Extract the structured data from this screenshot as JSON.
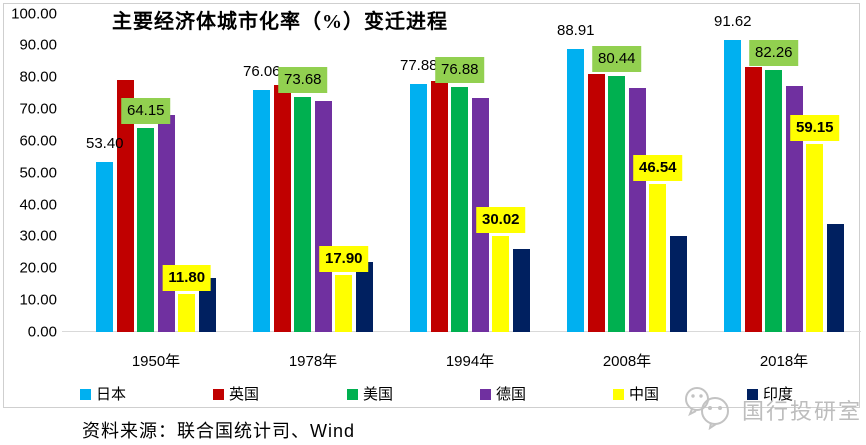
{
  "chart": {
    "source_note": "资料来源：联合国统计司、Wind",
    "watermark_text": "国行投研室",
    "watermark_icon": "wechat-logo-icon",
    "frame_color": "#cfcfcf",
    "axis_color": "#d9d9d9"
  },
  "chart_data": {
    "type": "bar",
    "title": "主要经济体城市化率（%）变迁进程",
    "categories": [
      "1950年",
      "1978年",
      "1994年",
      "2008年",
      "2018年"
    ],
    "series": [
      {
        "name": "日本",
        "color": "#00B0F0",
        "values": [
          53.4,
          76.06,
          77.88,
          88.91,
          91.62
        ],
        "data_labels": {
          "texts": [
            "53.40",
            "76.06",
            "77.88",
            "88.91",
            "91.62"
          ],
          "bg": null,
          "bold": false
        }
      },
      {
        "name": "英国",
        "color": "#C00000",
        "values": [
          79.0,
          77.6,
          78.9,
          80.9,
          83.3
        ]
      },
      {
        "name": "美国",
        "color": "#00B050",
        "values": [
          64.15,
          73.68,
          76.88,
          80.44,
          82.26
        ],
        "data_labels": {
          "texts": [
            "64.15",
            "73.68",
            "76.88",
            "80.44",
            "82.26"
          ],
          "bg": "#92D050",
          "bold": false
        }
      },
      {
        "name": "德国",
        "color": "#7030A0",
        "values": [
          68.1,
          72.6,
          73.5,
          76.6,
          77.3
        ]
      },
      {
        "name": "中国",
        "color": "#FFFF00",
        "values": [
          11.8,
          17.9,
          30.02,
          46.54,
          59.15
        ],
        "data_labels": {
          "texts": [
            "11.80",
            "17.90",
            "30.02",
            "46.54",
            "59.15"
          ],
          "bg": "#FFFF00",
          "bold": true
        }
      },
      {
        "name": "印度",
        "color": "#002060",
        "values": [
          17.0,
          22.0,
          26.2,
          30.1,
          33.9
        ]
      }
    ],
    "ylim": [
      0,
      100
    ],
    "ytick_labels": [
      "0.00",
      "10.00",
      "20.00",
      "30.00",
      "40.00",
      "50.00",
      "60.00",
      "70.00",
      "80.00",
      "90.00",
      "100.00"
    ],
    "grid": false,
    "legend_position": "bottom"
  }
}
